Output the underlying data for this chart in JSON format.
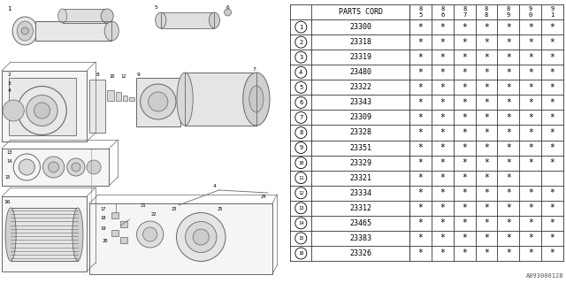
{
  "bg_color": "#ffffff",
  "col_header": "PARTS CORD",
  "year_cols": [
    "85",
    "86",
    "87",
    "88",
    "89",
    "90",
    "91"
  ],
  "rows": [
    {
      "num": 1,
      "part": "23300",
      "stars": [
        true,
        true,
        true,
        true,
        true,
        true,
        true
      ]
    },
    {
      "num": 2,
      "part": "23318",
      "stars": [
        true,
        true,
        true,
        true,
        true,
        true,
        true
      ]
    },
    {
      "num": 3,
      "part": "23319",
      "stars": [
        true,
        true,
        true,
        true,
        true,
        true,
        true
      ]
    },
    {
      "num": 4,
      "part": "23480",
      "stars": [
        true,
        true,
        true,
        true,
        true,
        true,
        true
      ]
    },
    {
      "num": 5,
      "part": "23322",
      "stars": [
        true,
        true,
        true,
        true,
        true,
        true,
        true
      ]
    },
    {
      "num": 6,
      "part": "23343",
      "stars": [
        true,
        true,
        true,
        true,
        true,
        true,
        true
      ]
    },
    {
      "num": 7,
      "part": "23309",
      "stars": [
        true,
        true,
        true,
        true,
        true,
        true,
        true
      ]
    },
    {
      "num": 8,
      "part": "23328",
      "stars": [
        true,
        true,
        true,
        true,
        true,
        true,
        true
      ]
    },
    {
      "num": 9,
      "part": "23351",
      "stars": [
        true,
        true,
        true,
        true,
        true,
        true,
        true
      ]
    },
    {
      "num": 10,
      "part": "23329",
      "stars": [
        true,
        true,
        true,
        true,
        true,
        true,
        true
      ]
    },
    {
      "num": 11,
      "part": "23321",
      "stars": [
        true,
        true,
        true,
        true,
        true,
        false,
        false
      ]
    },
    {
      "num": 12,
      "part": "23334",
      "stars": [
        true,
        true,
        true,
        true,
        true,
        true,
        true
      ]
    },
    {
      "num": 13,
      "part": "23312",
      "stars": [
        true,
        true,
        true,
        true,
        true,
        true,
        true
      ]
    },
    {
      "num": 14,
      "part": "23465",
      "stars": [
        true,
        true,
        true,
        true,
        true,
        true,
        true
      ]
    },
    {
      "num": 15,
      "part": "23383",
      "stars": [
        true,
        true,
        true,
        true,
        true,
        true,
        true
      ]
    },
    {
      "num": 16,
      "part": "23326",
      "stars": [
        true,
        true,
        true,
        true,
        true,
        true,
        true
      ]
    }
  ],
  "watermark": "A093000128",
  "line_color": "#000000",
  "text_color": "#000000",
  "diagram_line_color": "#666666"
}
